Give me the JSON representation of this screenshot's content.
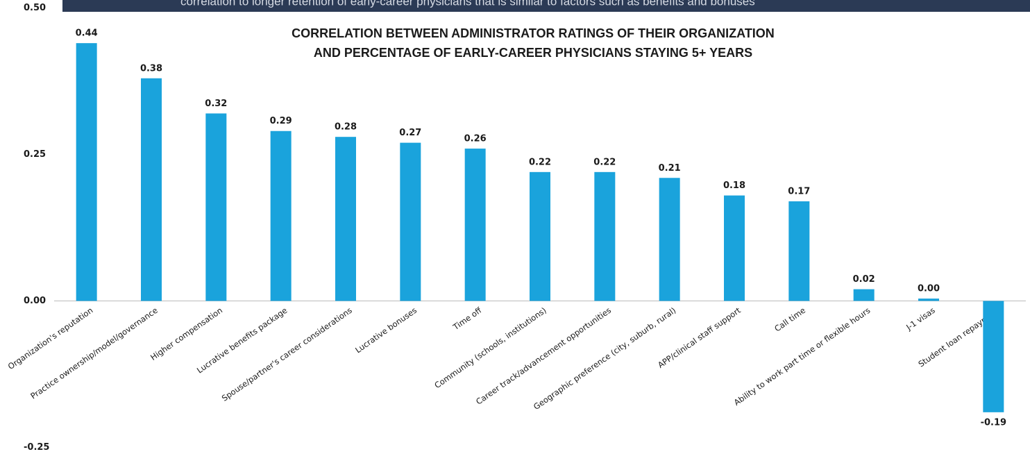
{
  "banner": {
    "text": "correlation to longer retention of early-career physicians that is similar to factors such as benefits and bonuses"
  },
  "chart_data": {
    "type": "bar",
    "title": [
      "CORRELATION BETWEEN ADMINISTRATOR RATINGS OF THEIR ORGANIZATION",
      "AND PERCENTAGE OF EARLY-CAREER PHYSICIANS STAYING 5+ YEARS"
    ],
    "categories": [
      "Organization's reputation",
      "Practice ownership/model/governance",
      "Higher compensation",
      "Lucrative benefits package",
      "Spouse/partner's career considerations",
      "Lucrative bonuses",
      "Time off",
      "Community (schools, institutions)",
      "Career track/advancement opportunities",
      "Geographic preference (city, suburb, rural)",
      "APP/clinical staff support",
      "Call time",
      "Ability to work part time or flexible hours",
      "J-1 visas",
      "Student loan repayment"
    ],
    "values": [
      0.44,
      0.38,
      0.32,
      0.29,
      0.28,
      0.27,
      0.26,
      0.22,
      0.22,
      0.21,
      0.18,
      0.17,
      0.02,
      0.004,
      -0.19
    ],
    "value_labels": [
      "0.44",
      "0.38",
      "0.32",
      "0.29",
      "0.28",
      "0.27",
      "0.26",
      "0.22",
      "0.22",
      "0.21",
      "0.18",
      "0.17",
      "0.02",
      "0.00",
      "-0.19"
    ],
    "color": "#1aa3dc",
    "ylim": [
      -0.25,
      0.5
    ],
    "yticks": [
      {
        "value": -0.25,
        "label": "-0.25"
      },
      {
        "value": 0,
        "label": "0.00"
      },
      {
        "value": 0.25,
        "label": "0.25"
      },
      {
        "value": 0.5,
        "label": "0.50"
      }
    ],
    "grid": false
  }
}
